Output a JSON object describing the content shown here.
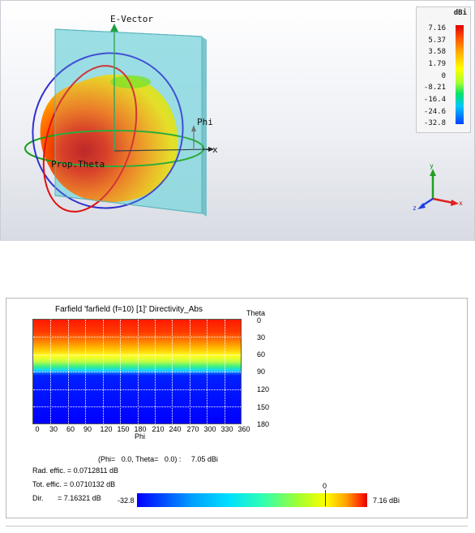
{
  "view3d": {
    "e_vector_label": "E-Vector",
    "phi_label": "Phi",
    "x_label": "x",
    "prop_theta_label": "Prop.Theta",
    "axes": {
      "x": "x",
      "y": "y",
      "z": "z"
    },
    "legend": {
      "unit": "dBi",
      "ticks": [
        "7.16",
        "5.37",
        "3.58",
        "1.79",
        "0",
        "-8.21",
        "-16.4",
        "-24.6",
        "-32.8"
      ]
    }
  },
  "panel2d": {
    "title": "Farfield 'farfield (f=10) [1]' Directivity_Abs",
    "theta_label": "Theta",
    "phi_label": "Phi",
    "x_ticks": [
      "0",
      "30",
      "60",
      "90",
      "120",
      "150",
      "180",
      "210",
      "240",
      "270",
      "300",
      "330",
      "360"
    ],
    "y_ticks": [
      "0",
      "30",
      "60",
      "90",
      "120",
      "150",
      "180"
    ],
    "cursor_readout": "(Phi=   0.0, Theta=   0.0) :     7.05 dBi",
    "rad_effic": "Rad. effic. = 0.0712811 dB",
    "tot_effic": "Tot. effic. = 0.0710132 dB",
    "dir": "Dir.       = 7.16321 dB",
    "colorbar_min": "-32.8",
    "colorbar_zero": "0",
    "colorbar_max": "7.16 dBi"
  }
}
